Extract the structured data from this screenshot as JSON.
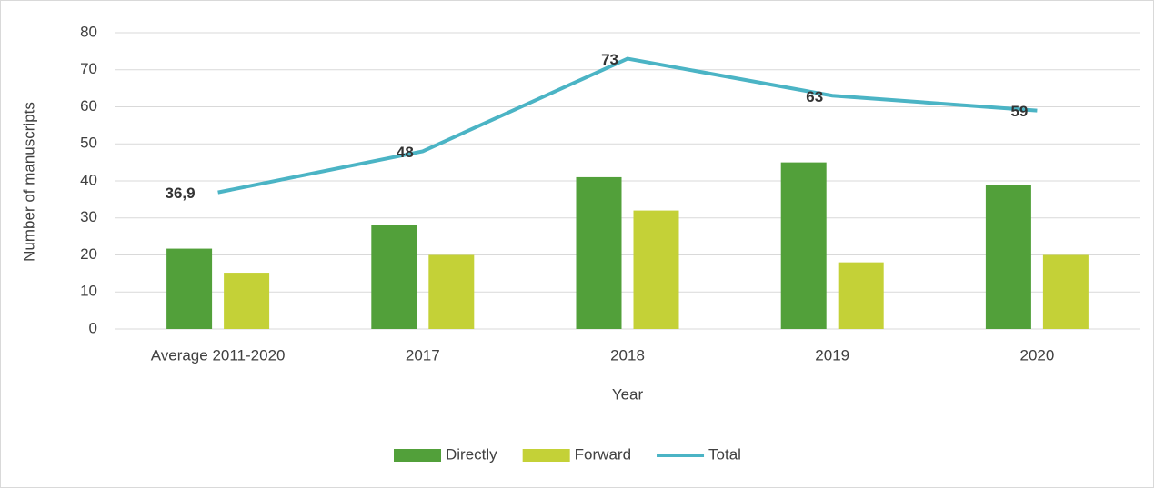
{
  "chart_data": {
    "type": "bar",
    "x_label": "Year",
    "y_label": "Number of manuscripts",
    "categories": [
      "Average 2011-2020",
      "2017",
      "2018",
      "2019",
      "2020"
    ],
    "series": [
      {
        "name": "Directly",
        "type": "bar",
        "color": "#52a03a",
        "values": [
          21.7,
          28,
          41,
          45,
          39
        ]
      },
      {
        "name": "Forward",
        "type": "bar",
        "color": "#c4d137",
        "values": [
          15.2,
          20,
          32,
          18,
          20
        ]
      },
      {
        "name": "Total",
        "type": "line",
        "color": "#4bb4c5",
        "values": [
          36.9,
          48,
          73,
          63,
          59
        ],
        "value_labels": [
          "36,9",
          "48",
          "73",
          "63",
          "59"
        ]
      }
    ],
    "ylim": [
      0,
      80
    ],
    "yticks": [
      0,
      10,
      20,
      30,
      40,
      50,
      60,
      70,
      80
    ],
    "grid": true,
    "legend": "bottom"
  }
}
